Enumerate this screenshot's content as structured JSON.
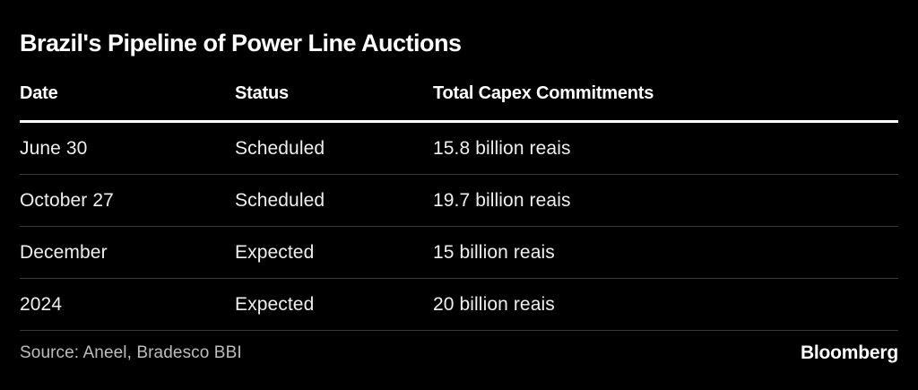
{
  "title": "Brazil's Pipeline of Power Line Auctions",
  "chart_data": {
    "type": "table",
    "title": "Brazil's Pipeline of Power Line Auctions",
    "columns": [
      "Date",
      "Status",
      "Total Capex Commitments"
    ],
    "rows": [
      [
        "June 30",
        "Scheduled",
        "15.8 billion reais"
      ],
      [
        "October 27",
        "Scheduled",
        "19.7 billion reais"
      ],
      [
        "December",
        "Expected",
        "15 billion reais"
      ],
      [
        "2024",
        "Expected",
        "20 billion reais"
      ]
    ],
    "capex_values_billion_reais": [
      15.8,
      19.7,
      15,
      20
    ],
    "status_values": [
      "Scheduled",
      "Scheduled",
      "Expected",
      "Expected"
    ]
  },
  "footer": {
    "source": "Source: Aneel, Bradesco BBI",
    "brand": "Bloomberg"
  },
  "colors": {
    "background": "#000000",
    "title_text": "#ffffff",
    "header_text": "#ffffff",
    "body_text": "#efefef",
    "muted_text": "#bdbdbd",
    "header_rule": "#ffffff",
    "row_divider": "#3a3a3a"
  }
}
